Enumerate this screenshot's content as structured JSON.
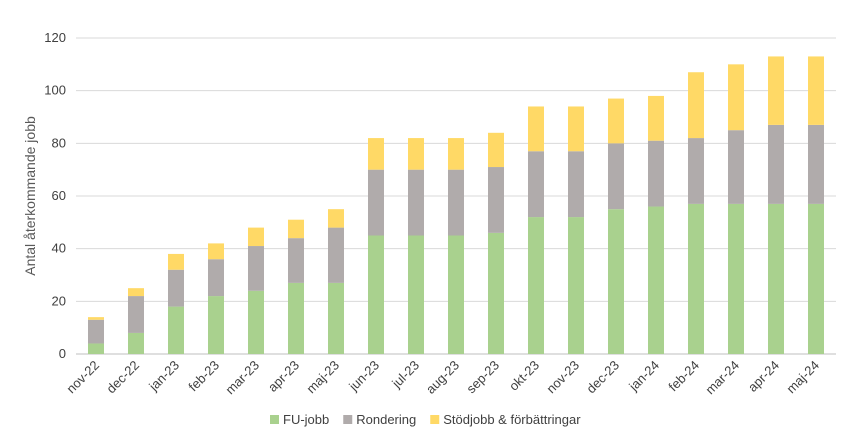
{
  "chart_data": {
    "type": "bar",
    "stacked": true,
    "title": "",
    "xlabel": "",
    "ylabel": "Antal återkommande jobb",
    "ylim": [
      0,
      120
    ],
    "yticks": [
      0,
      20,
      40,
      60,
      80,
      100,
      120
    ],
    "grid": true,
    "legend_position": "bottom",
    "categories": [
      "nov-22",
      "dec-22",
      "jan-23",
      "feb-23",
      "mar-23",
      "apr-23",
      "maj-23",
      "jun-23",
      "jul-23",
      "aug-23",
      "sep-23",
      "okt-23",
      "nov-23",
      "dec-23",
      "jan-24",
      "feb-24",
      "mar-24",
      "apr-24",
      "maj-24"
    ],
    "series": [
      {
        "name": "FU-jobb",
        "color": "#a9d18e",
        "values": [
          4,
          8,
          18,
          22,
          24,
          27,
          27,
          45,
          45,
          45,
          46,
          52,
          52,
          55,
          56,
          57,
          57,
          57,
          57
        ]
      },
      {
        "name": "Rondering",
        "color": "#b0abab",
        "values": [
          9,
          14,
          14,
          14,
          17,
          17,
          21,
          25,
          25,
          25,
          25,
          25,
          25,
          25,
          25,
          25,
          28,
          30,
          30
        ]
      },
      {
        "name": "Stödjobb & förbättringar",
        "color": "#ffd966",
        "values": [
          1,
          3,
          6,
          6,
          7,
          7,
          7,
          12,
          12,
          12,
          13,
          17,
          17,
          17,
          17,
          25,
          25,
          26,
          26
        ]
      }
    ]
  }
}
